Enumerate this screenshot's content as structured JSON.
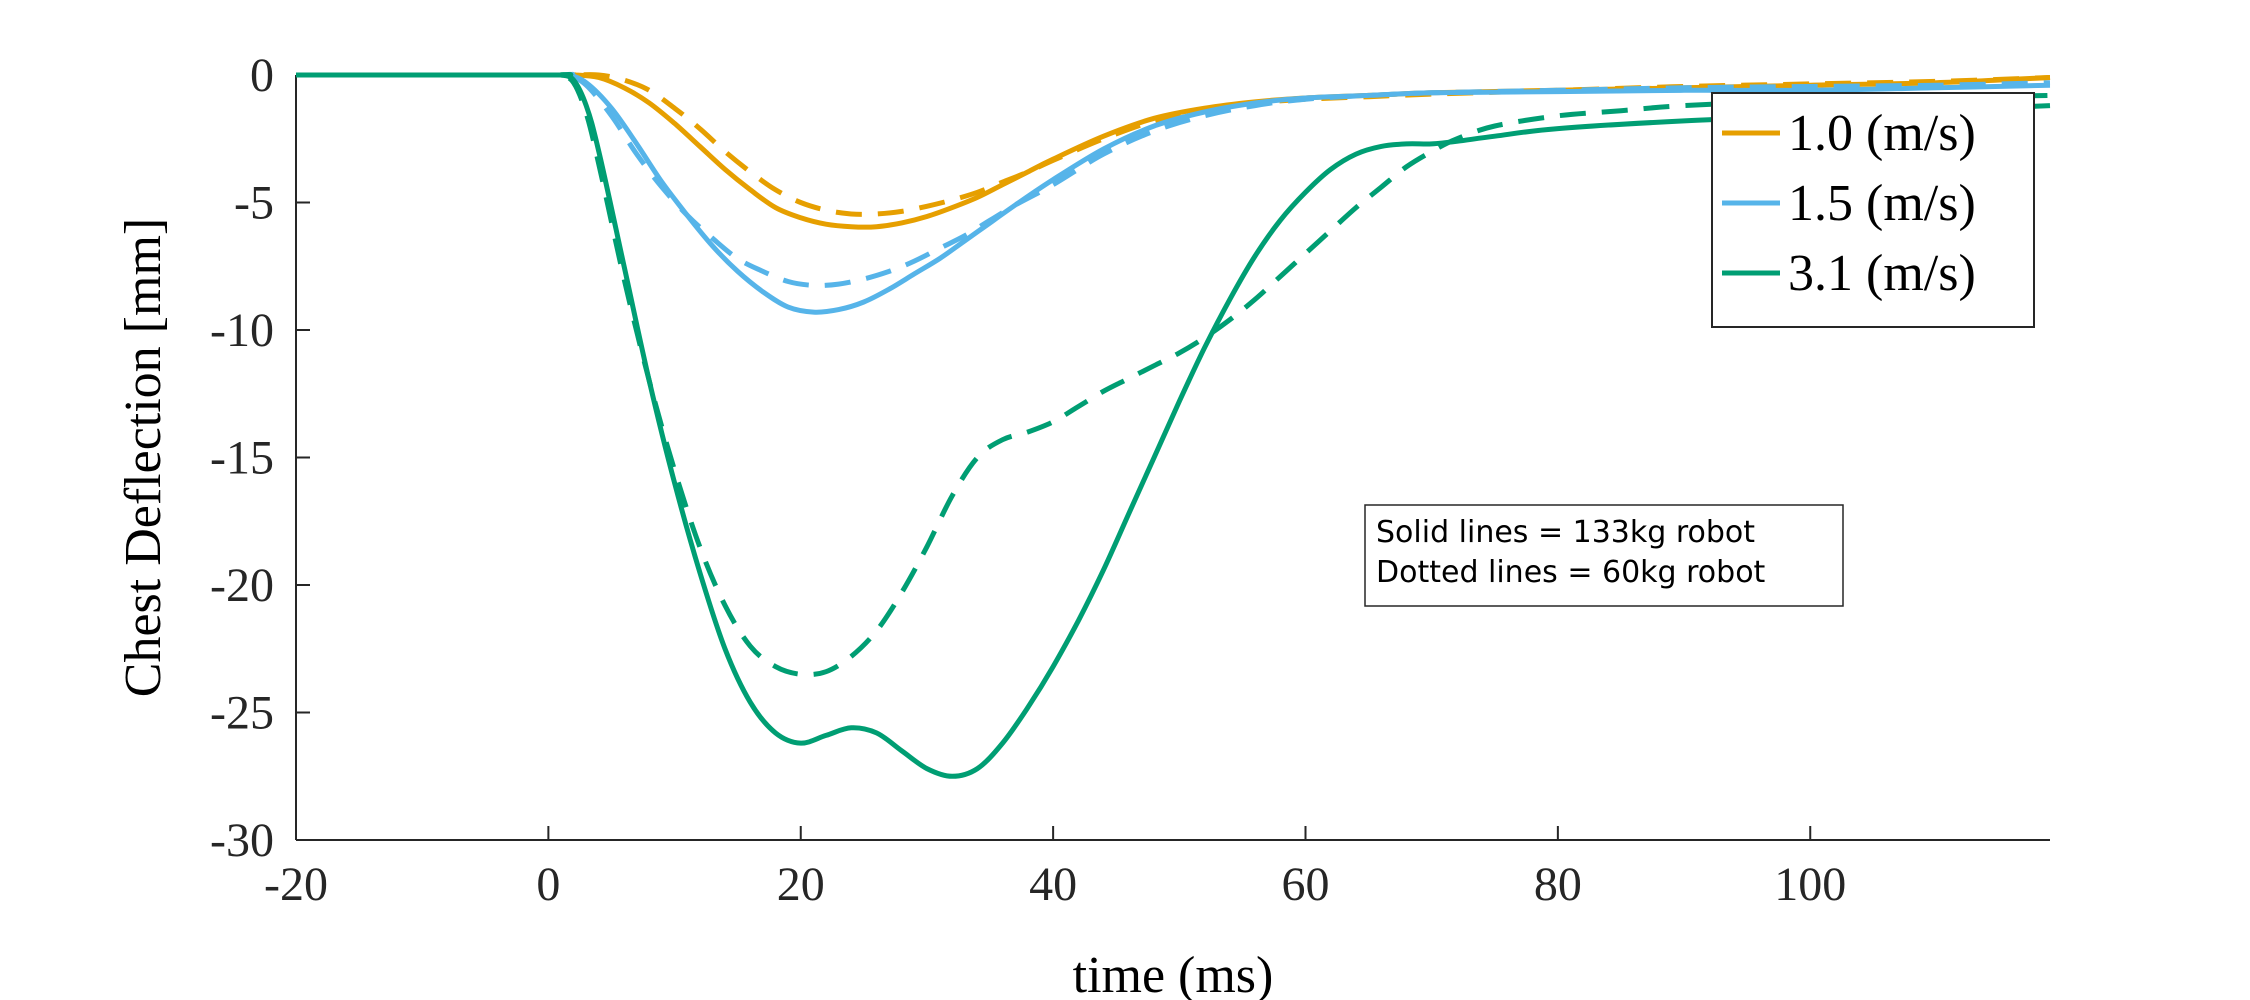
{
  "chart_data": {
    "type": "line",
    "xlabel": "time (ms)",
    "ylabel": "Chest Deflection [mm]",
    "xlim": [
      -20,
      119
    ],
    "ylim": [
      -30,
      0
    ],
    "xticks": [
      -20,
      0,
      20,
      40,
      60,
      80,
      100
    ],
    "yticks": [
      0,
      -5,
      -10,
      -15,
      -20,
      -25,
      -30
    ],
    "xtick_labels": [
      "-20",
      "0",
      "20",
      "40",
      "60",
      "80",
      "100"
    ],
    "ytick_labels": [
      "0",
      "-5",
      "-10",
      "-15",
      "-20",
      "-25",
      "-30"
    ],
    "grid": false,
    "legend_position": "top-right",
    "legend": [
      {
        "label": "1.0 (m/s)",
        "color": "#E69F00"
      },
      {
        "label": "1.5 (m/s)",
        "color": "#56B4E9"
      },
      {
        "label": "3.1 (m/s)",
        "color": "#009E73"
      }
    ],
    "annotation_lines": [
      "Solid lines = 133kg robot",
      "Dotted lines = 60kg robot"
    ],
    "series": [
      {
        "color": "#E69F00",
        "dash": "solid",
        "x": [
          -20,
          0,
          2,
          4,
          6,
          8,
          10,
          12,
          14,
          16,
          18,
          20,
          22,
          24,
          26,
          28,
          30,
          32,
          34,
          36,
          38,
          40,
          44,
          48,
          52,
          56,
          60,
          65,
          70,
          80,
          90,
          100,
          110,
          119
        ],
        "y": [
          0,
          0,
          0,
          -0.1,
          -0.5,
          -1.1,
          -1.9,
          -2.8,
          -3.7,
          -4.5,
          -5.2,
          -5.6,
          -5.85,
          -5.95,
          -5.95,
          -5.8,
          -5.55,
          -5.2,
          -4.8,
          -4.3,
          -3.8,
          -3.3,
          -2.4,
          -1.7,
          -1.3,
          -1.05,
          -0.9,
          -0.8,
          -0.7,
          -0.6,
          -0.5,
          -0.4,
          -0.3,
          -0.1
        ]
      },
      {
        "color": "#E69F00",
        "dash": "dashed",
        "x": [
          -20,
          0,
          2,
          4,
          6,
          8,
          10,
          12,
          14,
          16,
          18,
          20,
          22,
          24,
          26,
          28,
          30,
          32,
          34,
          36,
          38,
          40,
          44,
          48,
          52,
          56,
          60,
          65,
          70,
          80,
          90,
          100,
          110,
          119
        ],
        "y": [
          0,
          0,
          0,
          0,
          -0.2,
          -0.6,
          -1.3,
          -2.1,
          -3.0,
          -3.8,
          -4.5,
          -5.0,
          -5.3,
          -5.45,
          -5.45,
          -5.35,
          -5.15,
          -4.9,
          -4.6,
          -4.2,
          -3.8,
          -3.35,
          -2.5,
          -1.8,
          -1.35,
          -1.1,
          -0.95,
          -0.85,
          -0.75,
          -0.6,
          -0.45,
          -0.35,
          -0.25,
          -0.1
        ]
      },
      {
        "color": "#56B4E9",
        "dash": "solid",
        "x": [
          -20,
          0,
          1.5,
          3,
          5,
          7,
          9,
          11,
          13,
          15,
          17,
          19,
          21,
          23,
          25,
          27,
          29,
          31,
          33,
          35,
          37,
          40,
          44,
          48,
          52,
          56,
          60,
          65,
          70,
          80,
          90,
          100,
          110,
          119
        ],
        "y": [
          0,
          0,
          0,
          -0.3,
          -1.3,
          -2.7,
          -4.2,
          -5.5,
          -6.7,
          -7.7,
          -8.5,
          -9.1,
          -9.3,
          -9.2,
          -8.9,
          -8.4,
          -7.8,
          -7.2,
          -6.5,
          -5.8,
          -5.1,
          -4.1,
          -2.9,
          -2.0,
          -1.45,
          -1.1,
          -0.9,
          -0.8,
          -0.7,
          -0.65,
          -0.6,
          -0.6,
          -0.5,
          -0.4
        ]
      },
      {
        "color": "#56B4E9",
        "dash": "dashed",
        "x": [
          -20,
          0,
          1.5,
          3,
          5,
          7,
          9,
          11,
          13,
          15,
          17,
          19,
          21,
          23,
          25,
          27,
          29,
          31,
          33,
          35,
          37,
          40,
          44,
          48,
          52,
          56,
          60,
          65,
          70,
          80,
          90,
          100,
          110,
          119
        ],
        "y": [
          0,
          0,
          0,
          -0.4,
          -1.6,
          -3.1,
          -4.4,
          -5.5,
          -6.4,
          -7.2,
          -7.7,
          -8.1,
          -8.25,
          -8.2,
          -8.0,
          -7.7,
          -7.3,
          -6.8,
          -6.3,
          -5.7,
          -5.1,
          -4.3,
          -3.1,
          -2.2,
          -1.6,
          -1.2,
          -0.95,
          -0.8,
          -0.7,
          -0.6,
          -0.5,
          -0.45,
          -0.4,
          -0.3
        ]
      },
      {
        "color": "#009E73",
        "dash": "solid",
        "x": [
          -20,
          0,
          1,
          2,
          3,
          4,
          6,
          8,
          10,
          12,
          14,
          16,
          18,
          20,
          22,
          24,
          26,
          28,
          30,
          32,
          34,
          36,
          38,
          40,
          42,
          44,
          46,
          48,
          50,
          52,
          54,
          56,
          58,
          60,
          62,
          64,
          66,
          68,
          70,
          72,
          75,
          80,
          90,
          100,
          110,
          119
        ],
        "y": [
          0,
          0,
          0,
          -0.2,
          -1.2,
          -3.0,
          -7.5,
          -12.0,
          -16.0,
          -19.5,
          -22.5,
          -24.6,
          -25.8,
          -26.2,
          -25.9,
          -25.6,
          -25.8,
          -26.5,
          -27.2,
          -27.5,
          -27.2,
          -26.2,
          -24.8,
          -23.2,
          -21.4,
          -19.4,
          -17.2,
          -15.0,
          -12.8,
          -10.7,
          -8.8,
          -7.1,
          -5.7,
          -4.6,
          -3.7,
          -3.1,
          -2.8,
          -2.7,
          -2.7,
          -2.6,
          -2.4,
          -2.1,
          -1.8,
          -1.6,
          -1.4,
          -1.2
        ]
      },
      {
        "color": "#009E73",
        "dash": "dashed",
        "x": [
          -20,
          0,
          1,
          2,
          3,
          4,
          6,
          8,
          10,
          12,
          14,
          16,
          18,
          20,
          22,
          24,
          26,
          28,
          30,
          32,
          34,
          36,
          38,
          40,
          42,
          44,
          46,
          48,
          50,
          52,
          54,
          56,
          58,
          60,
          62,
          64,
          66,
          68,
          70,
          72,
          75,
          80,
          85,
          90,
          100,
          110,
          119
        ],
        "y": [
          0,
          0,
          0,
          -0.3,
          -1.5,
          -3.5,
          -8.0,
          -12.0,
          -15.5,
          -18.5,
          -20.8,
          -22.4,
          -23.2,
          -23.5,
          -23.4,
          -22.8,
          -21.8,
          -20.3,
          -18.5,
          -16.5,
          -15.0,
          -14.3,
          -14.0,
          -13.6,
          -13.0,
          -12.4,
          -11.9,
          -11.4,
          -10.9,
          -10.3,
          -9.6,
          -8.8,
          -7.9,
          -7.0,
          -6.1,
          -5.2,
          -4.4,
          -3.6,
          -3.0,
          -2.5,
          -2.0,
          -1.6,
          -1.4,
          -1.2,
          -1.0,
          -0.9,
          -0.8
        ]
      }
    ]
  }
}
